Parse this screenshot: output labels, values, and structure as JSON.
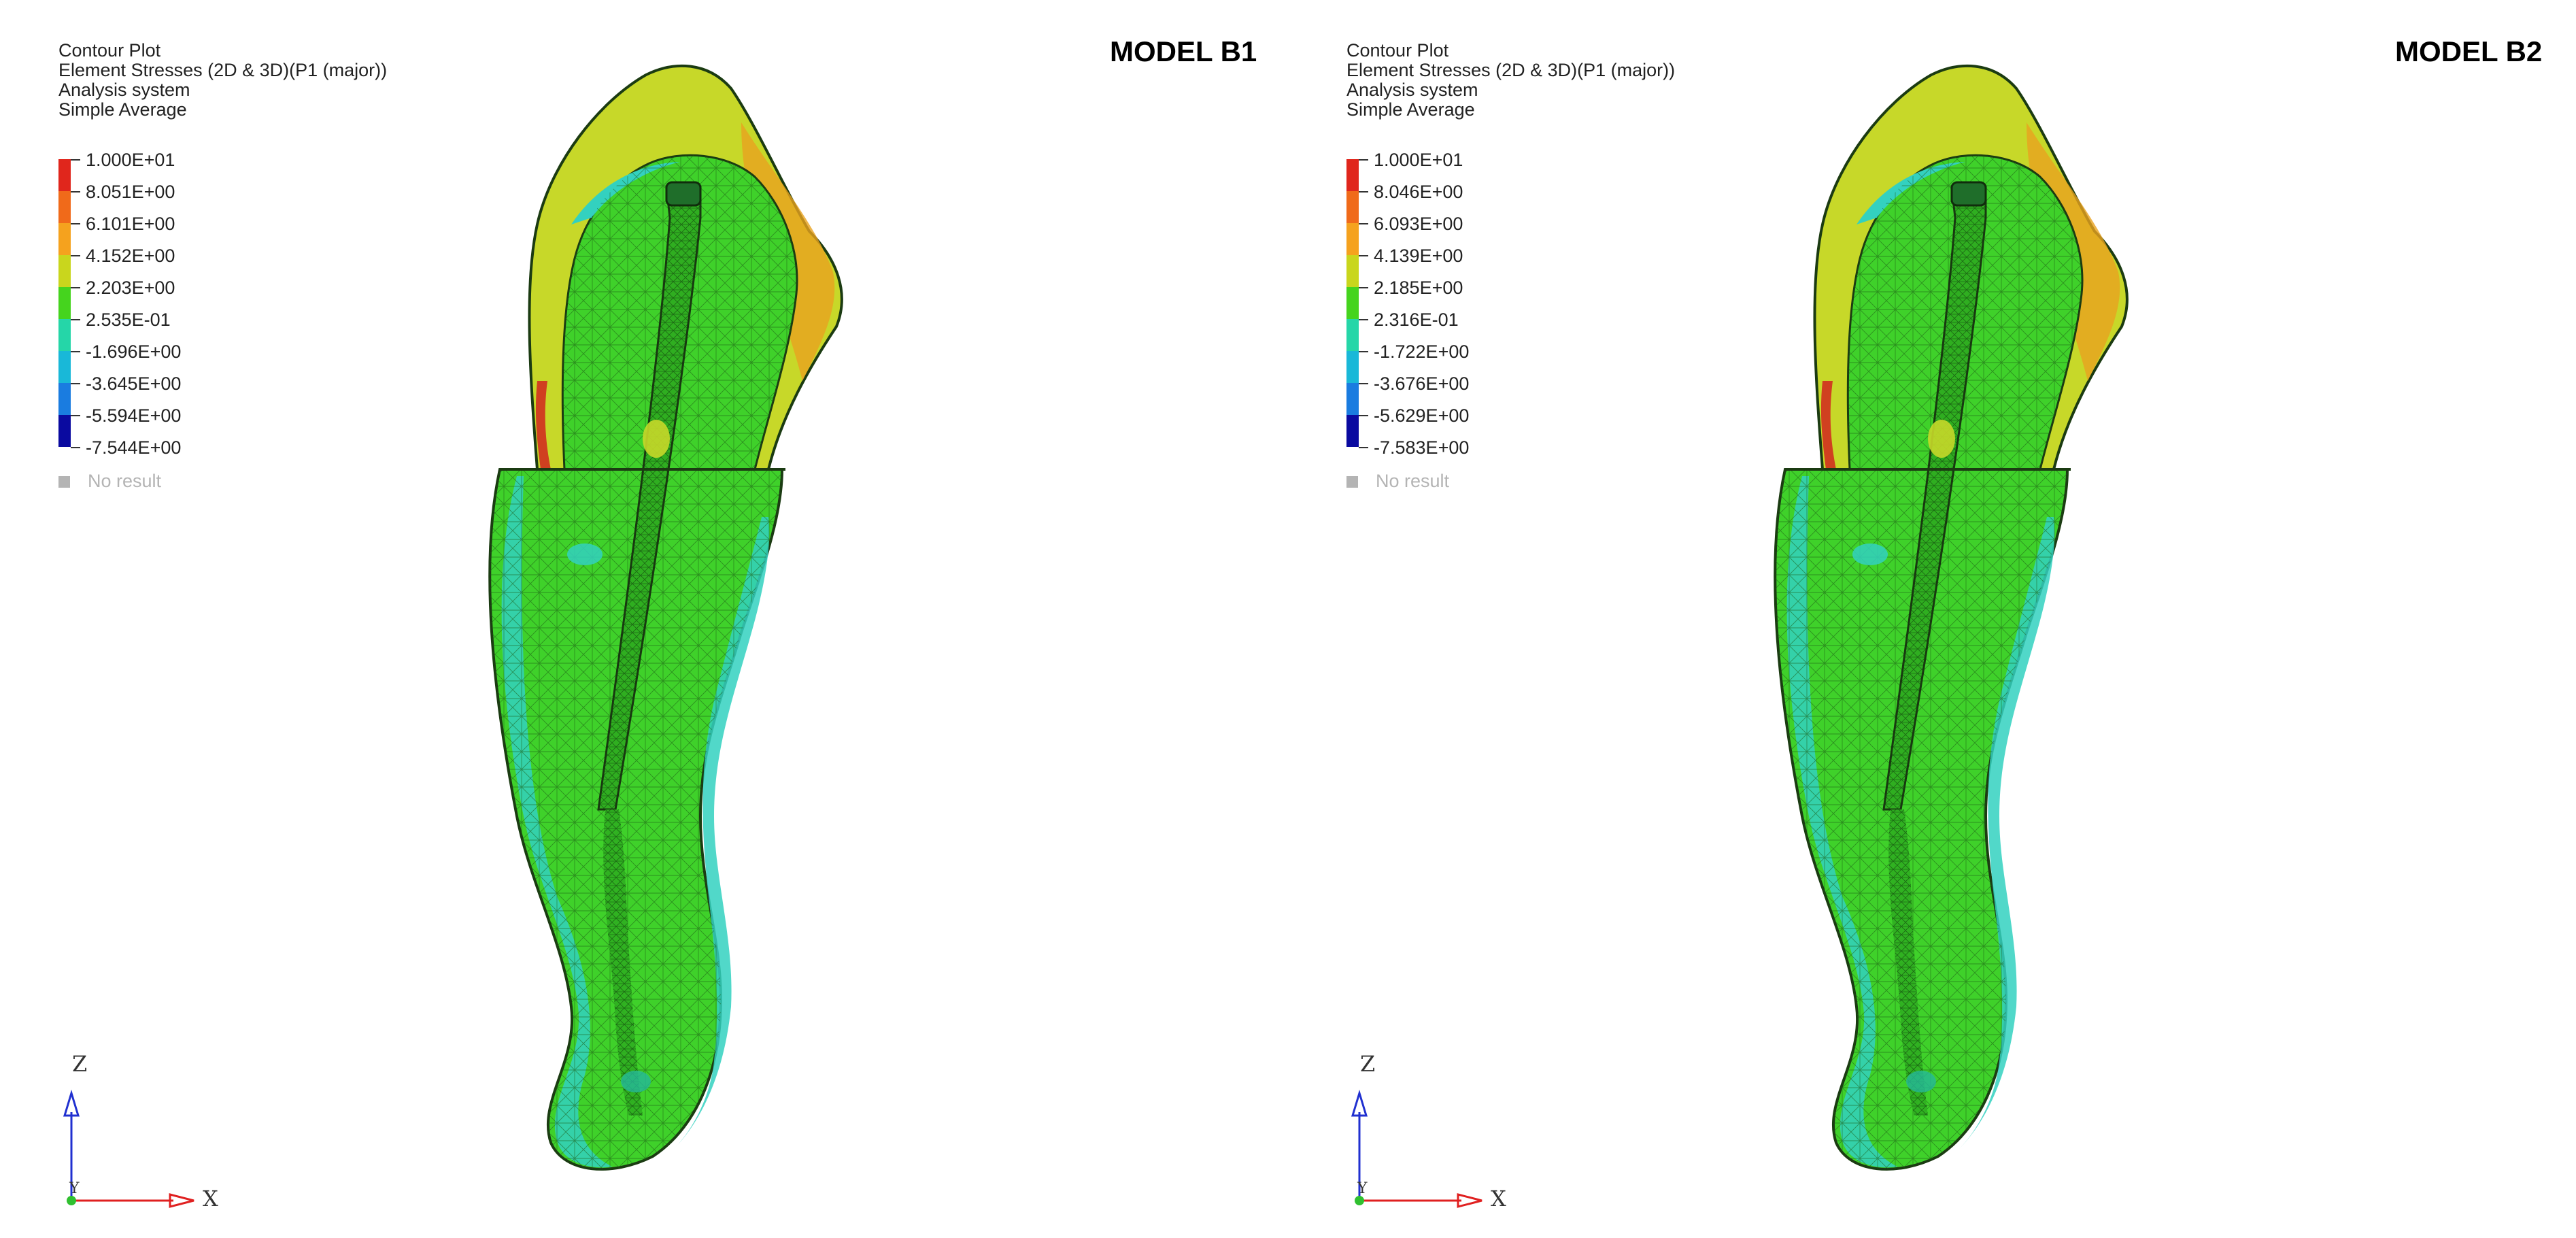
{
  "panels": [
    {
      "model_title": "MODEL B1",
      "legend": {
        "lines": [
          "Contour Plot",
          "Element Stresses (2D & 3D)(P1 (major))",
          "Analysis system",
          "Simple Average"
        ],
        "values": [
          "1.000E+01",
          "8.051E+00",
          "6.101E+00",
          "4.152E+00",
          "2.203E+00",
          "2.535E-01",
          "-1.696E+00",
          "-3.645E+00",
          "-5.594E+00",
          "-7.544E+00"
        ],
        "no_result": "No result"
      },
      "axes": {
        "z": "Z",
        "x": "X",
        "y": "Y"
      }
    },
    {
      "model_title": "MODEL B2",
      "legend": {
        "lines": [
          "Contour Plot",
          "Element Stresses (2D & 3D)(P1 (major))",
          "Analysis system",
          "Simple Average"
        ],
        "values": [
          "1.000E+01",
          "8.046E+00",
          "6.093E+00",
          "4.139E+00",
          "2.185E+00",
          "2.316E-01",
          "-1.722E+00",
          "-3.676E+00",
          "-5.629E+00",
          "-7.583E+00"
        ],
        "no_result": "No result"
      },
      "axes": {
        "z": "Z",
        "x": "X",
        "y": "Y"
      }
    }
  ],
  "colors": {
    "scale_bands": [
      "#e0261c",
      "#f06a1a",
      "#f5a21e",
      "#c9d61d",
      "#45d41e",
      "#25d6a8",
      "#19b8d8",
      "#1a7ce0",
      "#1a3acc",
      "#0a0aa0"
    ],
    "mesh_green": "#3fd12a",
    "mesh_cyan": "#33d1bf",
    "mesh_yellow": "#c7d829",
    "mesh_orange": "#e8a21f",
    "axis_z": "#2030d0",
    "axis_x": "#e02020",
    "origin_dot": "#30c030"
  }
}
